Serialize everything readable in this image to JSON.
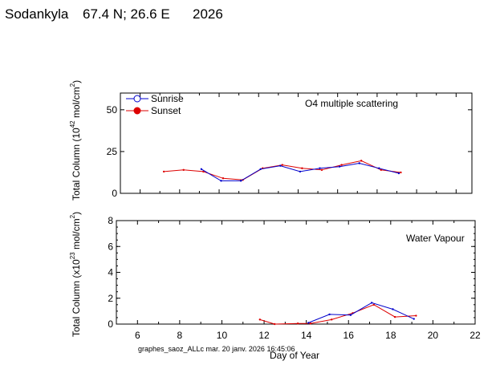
{
  "header": {
    "station": "Sodankyla",
    "location": "67.4 N; 26.6 E",
    "year": "2026"
  },
  "footer_note": "graphes_saoz_ALLc mar. 20 janv. 2026 16:45:06",
  "colors": {
    "sunrise": "#0000cc",
    "sunset": "#dd0000",
    "axis": "#000000"
  },
  "chart_data": [
    {
      "type": "line",
      "annotation": "O4 multiple scattering",
      "ylabel_main": "Total Column (10",
      "ylabel_exp": "42",
      "ylabel_unit": " mol/cm",
      "ylabel_unit_exp": "2",
      "ylabel_close": ")",
      "xlabel": "",
      "xlim": [
        5,
        22
      ],
      "ylim": [
        0,
        60
      ],
      "yticks": [
        0,
        25,
        50
      ],
      "ytick_labels": [
        "0",
        "25",
        "50"
      ],
      "legend": [
        "Sunrise",
        "Sunset"
      ],
      "series": [
        {
          "name": "Sunrise",
          "x": [
            9.1,
            10.1,
            11.1,
            12.1,
            13.1,
            14.1,
            15.1,
            16.1,
            17.1,
            18.1,
            19.1
          ],
          "values": [
            14.5,
            7.5,
            7.5,
            14.5,
            16.5,
            13.0,
            15.0,
            16.0,
            18.0,
            15.0,
            12.0
          ]
        },
        {
          "name": "Sunset",
          "x": [
            7.2,
            8.2,
            9.2,
            10.2,
            11.2,
            12.2,
            13.2,
            14.2,
            15.2,
            16.2,
            17.2,
            18.2,
            19.2
          ],
          "values": [
            13.0,
            14.0,
            13.0,
            9.0,
            8.0,
            15.0,
            17.0,
            15.0,
            14.0,
            17.0,
            19.5,
            14.0,
            12.5
          ]
        }
      ]
    },
    {
      "type": "line",
      "annotation": "Water Vapour",
      "ylabel_main": "Total Column (x10",
      "ylabel_exp": "23",
      "ylabel_unit": " mol/cm",
      "ylabel_unit_exp": "2",
      "ylabel_close": ")",
      "xlabel": "Day of Year",
      "xlim": [
        5,
        22
      ],
      "ylim": [
        0,
        8
      ],
      "yticks": [
        0,
        2,
        4,
        6,
        8
      ],
      "ytick_labels": [
        "0",
        "2",
        "4",
        "6",
        "8"
      ],
      "xticks": [
        6,
        8,
        10,
        12,
        14,
        16,
        18,
        20,
        22
      ],
      "xtick_labels": [
        "6",
        "8",
        "10",
        "12",
        "14",
        "16",
        "18",
        "20",
        "22"
      ],
      "series": [
        {
          "name": "Sunrise",
          "x": [
            14.1,
            15.1,
            16.1,
            17.1,
            18.1,
            19.1
          ],
          "values": [
            0.1,
            0.75,
            0.7,
            1.65,
            1.15,
            0.4
          ]
        },
        {
          "name": "Sunset",
          "x": [
            11.8,
            12.5,
            13.6,
            14.2,
            15.2,
            16.2,
            17.2,
            18.2,
            19.2
          ],
          "values": [
            0.35,
            0.0,
            0.05,
            0.05,
            0.35,
            0.85,
            1.5,
            0.55,
            0.65
          ]
        }
      ]
    }
  ]
}
